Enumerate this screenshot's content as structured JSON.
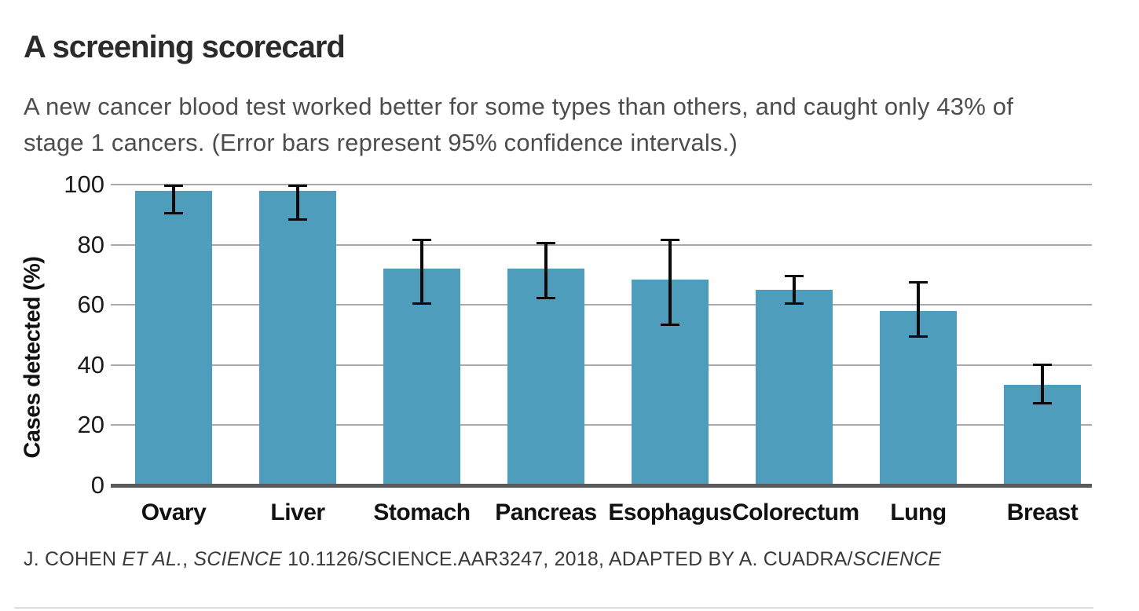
{
  "header": {
    "title": "A screening scorecard",
    "subtitle_line1": "A new cancer blood test worked better for some types than others, and caught only 43% of",
    "subtitle_line2": "stage 1 cancers. (Error bars represent 95% confidence intervals.)"
  },
  "chart_data": {
    "type": "bar",
    "title": "A screening scorecard",
    "subtitle": "A new cancer blood test worked better for some types than others, and caught only 43% of stage 1 cancers. (Error bars represent 95% confidence intervals.)",
    "xlabel": "",
    "ylabel": "Cases detected (%)",
    "ylim": [
      0,
      100
    ],
    "yticks": [
      0,
      20,
      40,
      60,
      80,
      100
    ],
    "grid": "horizontal",
    "legend": "none",
    "bar_color": "#4f9dbd",
    "error_bar_color": "#0a0a0a",
    "error_bar_meaning": "95% confidence interval",
    "categories": [
      "Ovary",
      "Liver",
      "Stomach",
      "Pancreas",
      "Esophagus",
      "Colorectum",
      "Lung",
      "Breast"
    ],
    "values": [
      98,
      98,
      72,
      72,
      68.5,
      65,
      58,
      33.5
    ],
    "ci_low": [
      90,
      88,
      60,
      62,
      53,
      60,
      49,
      27
    ],
    "ci_high": [
      100,
      100,
      82,
      81,
      82,
      70,
      68,
      40.5
    ]
  },
  "footer": {
    "segments": [
      {
        "text": "J. COHEN ",
        "italic": false
      },
      {
        "text": "ET AL.",
        "italic": true
      },
      {
        "text": ", ",
        "italic": false
      },
      {
        "text": "SCIENCE",
        "italic": true
      },
      {
        "text": " 10.1126/SCIENCE.AAR3247, 2018, ADAPTED BY A. CUADRA/",
        "italic": false
      },
      {
        "text": "SCIENCE",
        "italic": true
      }
    ]
  }
}
